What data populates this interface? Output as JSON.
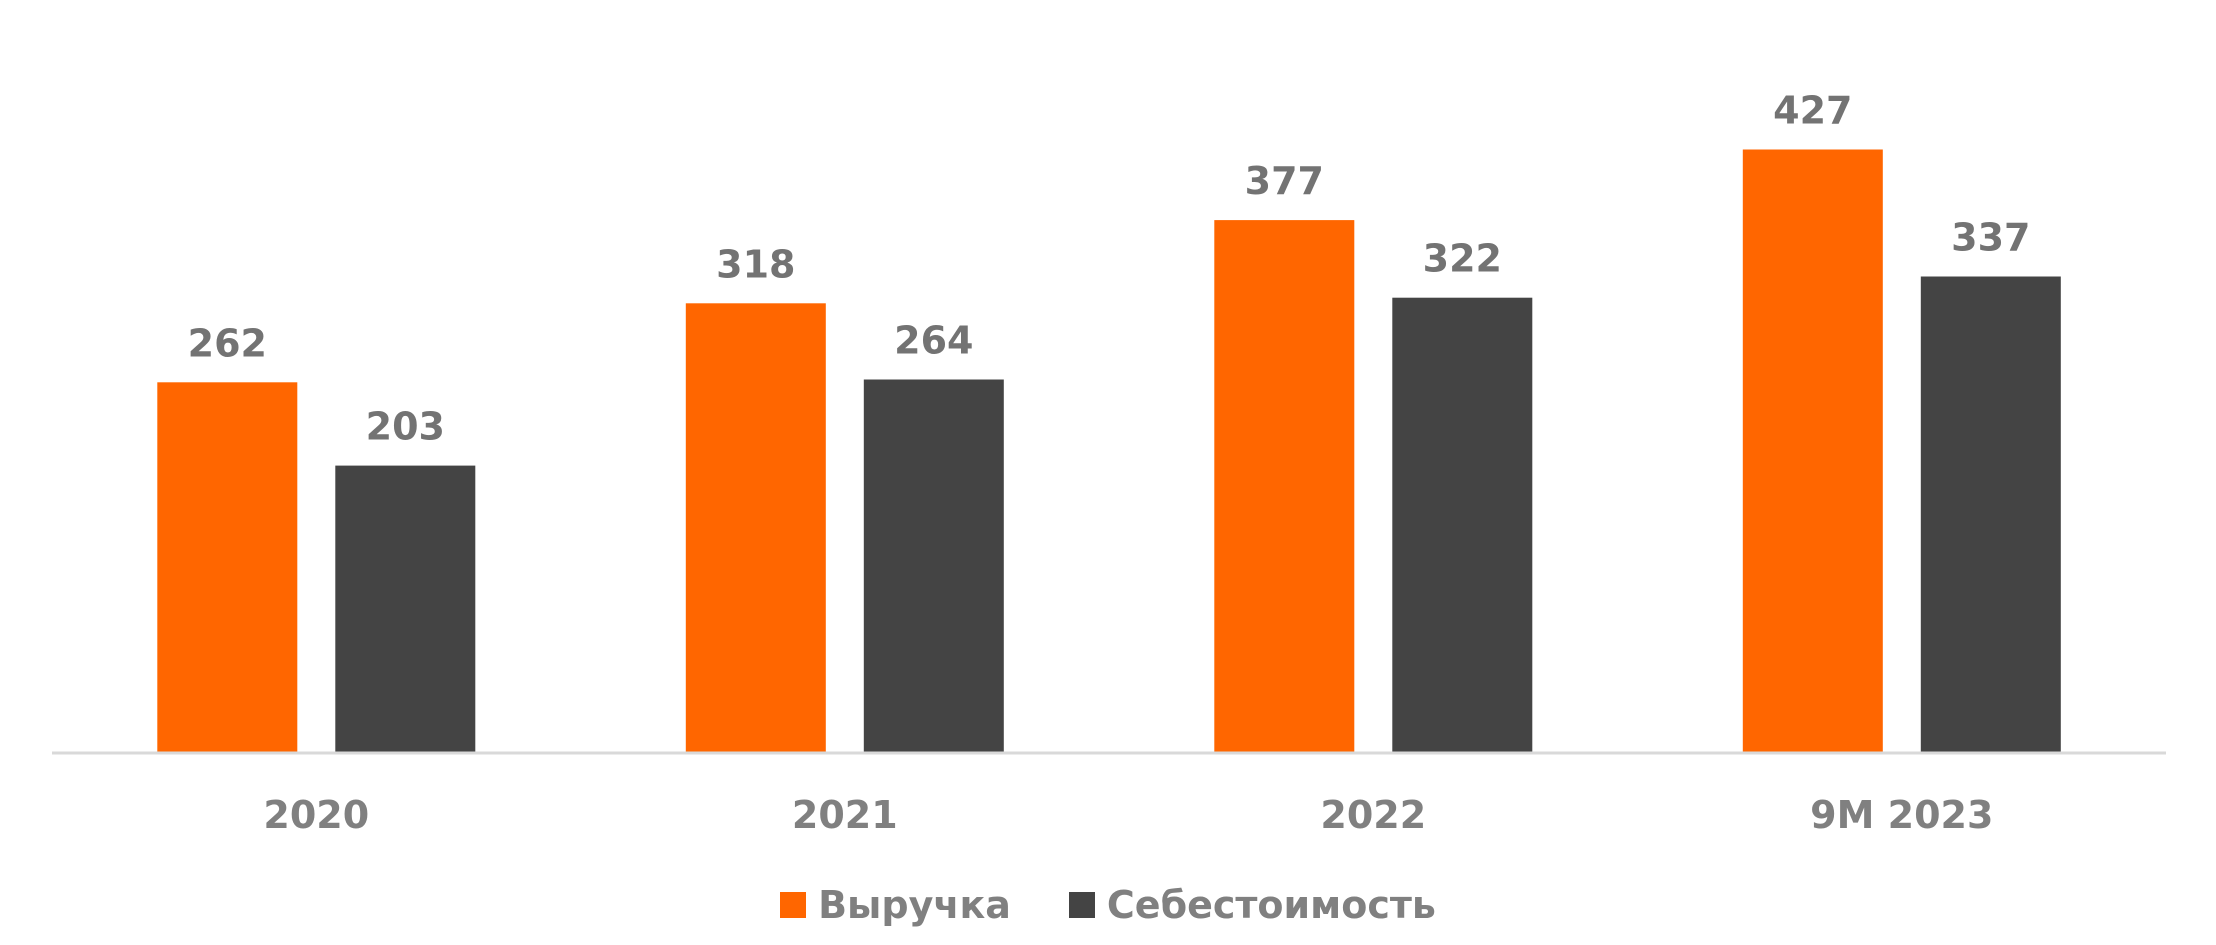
{
  "chart_data": {
    "type": "bar",
    "title": "",
    "xlabel": "",
    "ylabel": "",
    "categories": [
      "2020",
      "2021",
      "2022",
      "9M 2023"
    ],
    "series": [
      {
        "name": "Выручка",
        "values": [
          262,
          318,
          377,
          427
        ],
        "color": "#FF6600"
      },
      {
        "name": "Себестоимость",
        "values": [
          203,
          264,
          322,
          337
        ],
        "color": "#444444"
      }
    ],
    "ylim": [
      0,
      455
    ],
    "grid": false,
    "legend_position": "bottom"
  },
  "colors": {
    "axis_line": "#D9D9D9",
    "data_label": "#737373",
    "tick_label": "#808080"
  }
}
